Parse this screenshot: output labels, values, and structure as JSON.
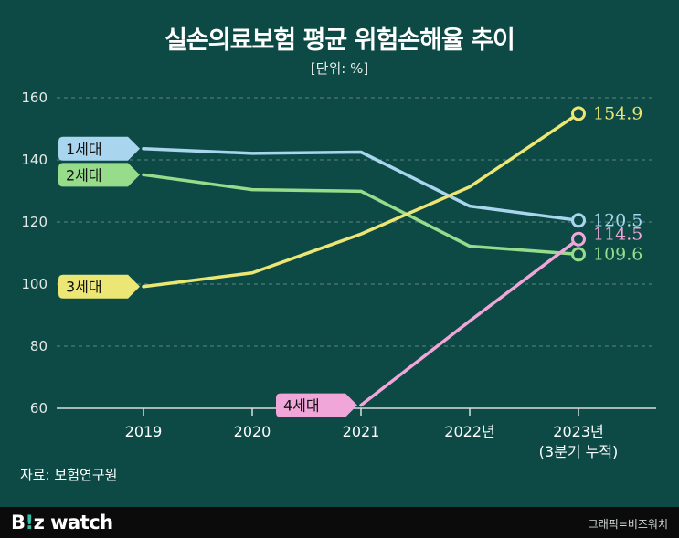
{
  "colors": {
    "background": "#0d4a46",
    "series": [
      "#a9d6ee",
      "#96dc8a",
      "#ece675",
      "#f0a6d8"
    ]
  },
  "header": {
    "title": "실손의료보험 평균 위험손해율 추이",
    "unit": "[단위: %]"
  },
  "source": "자료: 보험연구원",
  "footer": {
    "brand_prefix": "B",
    "brand_mark": "!",
    "brand_suffix": "z watch",
    "credit": "그래픽=비즈워치"
  },
  "chart_data": {
    "type": "line",
    "categories": [
      "2019",
      "2020",
      "2021",
      "2022년",
      "2023년\n(3분기 누적)"
    ],
    "ylim": [
      60,
      160
    ],
    "yticks": [
      60,
      80,
      100,
      120,
      140,
      160
    ],
    "grid": true,
    "series": [
      {
        "name": "1세대",
        "values": [
          143.6,
          142.1,
          142.5,
          125.1,
          120.5
        ],
        "end_label": "120.5"
      },
      {
        "name": "2세대",
        "values": [
          135.2,
          130.4,
          129.9,
          112.2,
          109.6
        ],
        "end_label": "109.6"
      },
      {
        "name": "3세대",
        "values": [
          99.2,
          103.6,
          116.1,
          131.3,
          154.9
        ],
        "end_label": "154.9"
      },
      {
        "name": "4세대",
        "values": [
          null,
          null,
          61.0,
          88.1,
          114.5
        ],
        "end_label": "114.5"
      }
    ]
  }
}
